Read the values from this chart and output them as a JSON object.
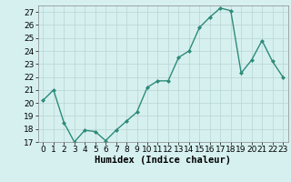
{
  "x": [
    0,
    1,
    2,
    3,
    4,
    5,
    6,
    7,
    8,
    9,
    10,
    11,
    12,
    13,
    14,
    15,
    16,
    17,
    18,
    19,
    20,
    21,
    22,
    23
  ],
  "y": [
    20.2,
    21.0,
    18.5,
    17.0,
    17.9,
    17.8,
    17.1,
    17.9,
    18.6,
    19.3,
    21.2,
    21.7,
    21.7,
    23.5,
    24.0,
    25.8,
    26.6,
    27.3,
    27.1,
    22.3,
    23.3,
    24.8,
    23.2,
    22.0
  ],
  "line_color": "#2e8b7a",
  "marker": "D",
  "marker_size": 2.0,
  "bg_color": "#d6f0f0",
  "grid_color": "#b8d4d4",
  "xlabel": "Humidex (Indice chaleur)",
  "ylim": [
    17,
    27.5
  ],
  "xlim": [
    -0.5,
    23.5
  ],
  "yticks": [
    17,
    18,
    19,
    20,
    21,
    22,
    23,
    24,
    25,
    26,
    27
  ],
  "xticks": [
    0,
    1,
    2,
    3,
    4,
    5,
    6,
    7,
    8,
    9,
    10,
    11,
    12,
    13,
    14,
    15,
    16,
    17,
    18,
    19,
    20,
    21,
    22,
    23
  ],
  "xlabel_fontsize": 7.5,
  "tick_fontsize": 6.5,
  "line_width": 1.0
}
